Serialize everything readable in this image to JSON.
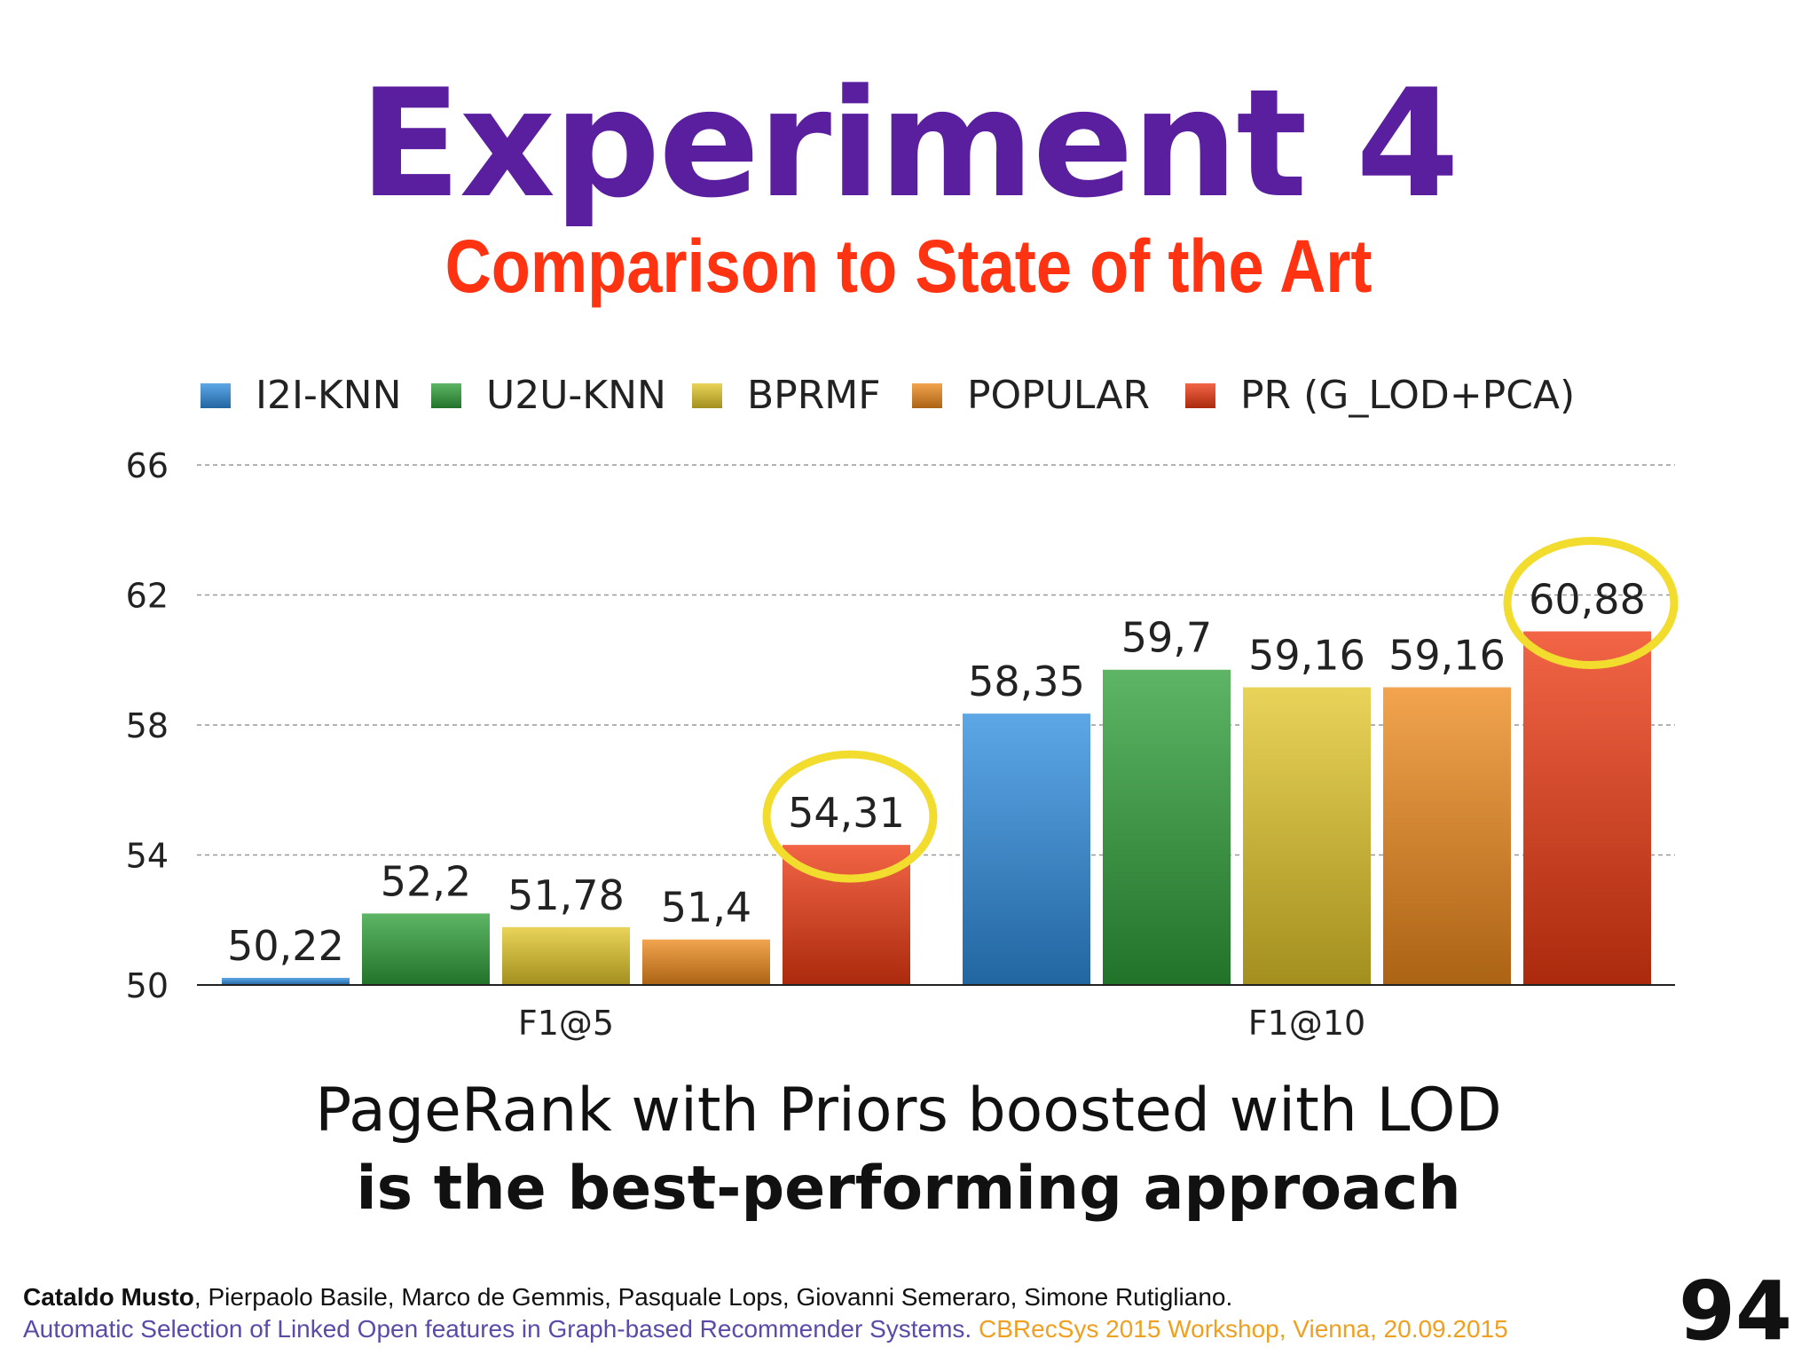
{
  "slide": {
    "title": "Experiment 4",
    "subtitle": "Comparison to State of the Art",
    "caption_line1": "PageRank with Priors boosted with LOD",
    "caption_line2": "is the best-performing approach",
    "footer_lead_author": "Cataldo Musto",
    "footer_coauthors": ", Pierpaolo Basile, Marco de Gemmis, Pasquale Lops, Giovanni Semeraro, Simone Rutigliano.",
    "footer_paper": "Automatic Selection of Linked Open features in Graph-based Recommender Systems.",
    "footer_venue": " CBRecSys 2015 Workshop, Vienna, 20.09.2015",
    "page_number": "94"
  },
  "chart_data": {
    "type": "bar",
    "categories": [
      "F1@5",
      "F1@10"
    ],
    "series": [
      {
        "name": "I2I-KNN",
        "values": [
          50.22,
          58.35
        ],
        "labels": [
          "50,22",
          "58,35"
        ],
        "color": "#2f8ee0"
      },
      {
        "name": "U2U-KNN",
        "values": [
          52.2,
          59.7
        ],
        "labels": [
          "52,2",
          "59,7"
        ],
        "color": "#2fa03a"
      },
      {
        "name": "BPRMF",
        "values": [
          51.78,
          59.16
        ],
        "labels": [
          "51,78",
          "59,16"
        ],
        "color": "#e3c72a"
      },
      {
        "name": "POPULAR",
        "values": [
          51.4,
          59.16
        ],
        "labels": [
          "51,4",
          "59,16"
        ],
        "color": "#ee8a1c"
      },
      {
        "name": "PR (G_LOD+PCA)",
        "values": [
          54.31,
          60.88
        ],
        "labels": [
          "54,31",
          "60,88"
        ],
        "color": "#ee3a12"
      }
    ],
    "ylim": [
      50,
      66
    ],
    "yticks": [
      "50",
      "54",
      "58",
      "62",
      "66"
    ],
    "grid": true,
    "legend_position": "top",
    "highlighted": [
      "54,31",
      "60,88"
    ],
    "highlight_color": "#f2dc2e"
  }
}
